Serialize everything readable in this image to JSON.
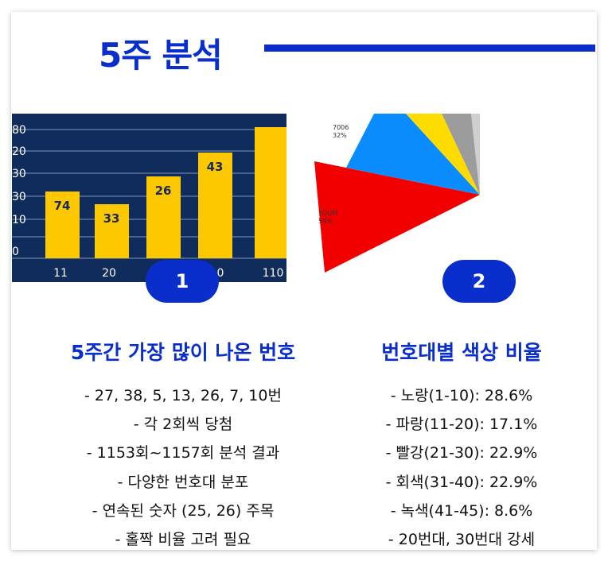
{
  "title": "5주 분석",
  "columns": [
    {
      "badge": 1,
      "heading": "5주간 가장 많이 나온 번호",
      "items": [
        "- 27, 38, 5, 13, 26, 7, 10번",
        "- 각 2회씩 당첨",
        "- 1153회~1157회 분석 결과",
        "- 다양한 번호대 분포",
        "- 연속된 숫자 (25, 26) 주목",
        "- 홀짝 비율 고려 필요"
      ],
      "image": {
        "y_labels": [
          80,
          20,
          30,
          30,
          10,
          0
        ],
        "bar_labels": [
          74,
          33,
          26,
          43
        ],
        "x_labels": [
          11,
          20,
          0,
          110
        ]
      }
    },
    {
      "badge": 2,
      "heading": "번호대별 색상 비율",
      "items": [
        "- 노랑(1-10): 28.6%",
        "- 파랑(11-20): 17.1%",
        "- 빨강(21-30): 22.9%",
        "- 회색(31-40): 22.9%",
        "- 녹색(41-45): 8.6%",
        "- 20번대, 30번대 강세"
      ],
      "image": {
        "slice_labels": [
          [
            "7006",
            "32%"
          ],
          [
            "7OUM",
            "59%"
          ]
        ]
      }
    }
  ]
}
